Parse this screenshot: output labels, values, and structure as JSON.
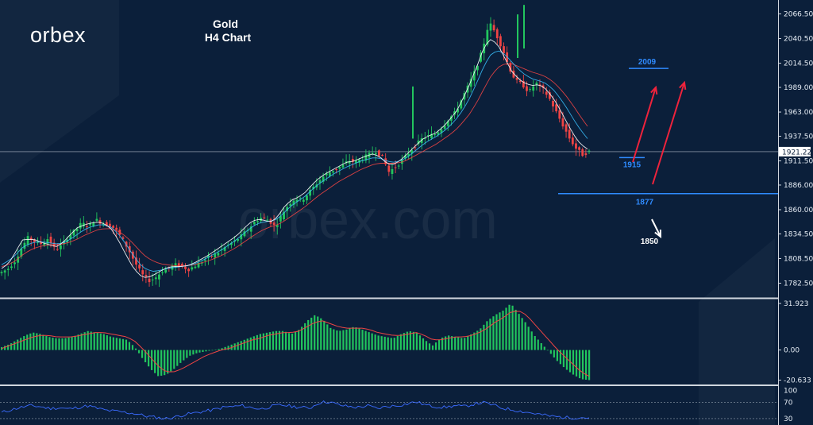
{
  "brand": {
    "logo": "orbex",
    "watermark": "orbex.com"
  },
  "title": {
    "line1": "Gold",
    "line2": "H4 Chart"
  },
  "colors": {
    "background": "#0b1f3a",
    "bull": "#22c55e",
    "bear": "#ef4444",
    "ma_fast": "#ffffff",
    "ma_mid": "#38bdf8",
    "ma_slow": "#ef4444",
    "level_line": "#2f8bff",
    "up_arrow": "#ef233c",
    "down_arrow": "#ffffff",
    "macd_hist": "#22c55e",
    "macd_signal": "#ef4444",
    "rsi_line": "#3b6bff"
  },
  "chart_data": [
    {
      "type": "candlestick",
      "panel": "price",
      "title": "Gold H4 Chart",
      "y_ticks": [
        "2066.50",
        "2040.50",
        "2014.50",
        "1989.00",
        "1963.00",
        "1937.50",
        "1911.50",
        "1886.00",
        "1860.00",
        "1834.50",
        "1808.50",
        "1782.50"
      ],
      "ylim": [
        1769.5,
        2079.5
      ],
      "current_price": "1921.22",
      "close_path": [
        1794,
        1798,
        1806,
        1820,
        1831,
        1826,
        1824,
        1830,
        1818,
        1822,
        1832,
        1838,
        1846,
        1842,
        1850,
        1846,
        1844,
        1840,
        1830,
        1818,
        1804,
        1792,
        1785,
        1788,
        1795,
        1798,
        1802,
        1800,
        1797,
        1801,
        1805,
        1810,
        1813,
        1818,
        1823,
        1827,
        1833,
        1840,
        1848,
        1852,
        1849,
        1842,
        1855,
        1866,
        1872,
        1870,
        1878,
        1886,
        1894,
        1899,
        1903,
        1906,
        1912,
        1910,
        1914,
        1918,
        1922,
        1916,
        1900,
        1905,
        1912,
        1920,
        1928,
        1935,
        1938,
        1940,
        1947,
        1956,
        1963,
        1978,
        1992,
        2008,
        2028,
        2058,
        2046,
        2030,
        2010,
        1996,
        1992,
        1984,
        1994,
        1988,
        1978,
        1964,
        1950,
        1936,
        1925,
        1918,
        1921.22
      ],
      "ma_fast_path": [
        1798,
        1803,
        1815,
        1828,
        1829,
        1828,
        1825,
        1823,
        1821,
        1826,
        1834,
        1841,
        1844,
        1846,
        1847,
        1845,
        1839,
        1827,
        1813,
        1800,
        1791,
        1788,
        1791,
        1795,
        1799,
        1800,
        1800,
        1801,
        1804,
        1808,
        1812,
        1817,
        1822,
        1827,
        1832,
        1839,
        1846,
        1850,
        1849,
        1847,
        1852,
        1863,
        1870,
        1873,
        1878,
        1886,
        1893,
        1898,
        1902,
        1906,
        1910,
        1911,
        1914,
        1917,
        1919,
        1915,
        1908,
        1908,
        1913,
        1920,
        1927,
        1934,
        1938,
        1941,
        1947,
        1955,
        1964,
        1978,
        1994,
        2012,
        2032,
        2040,
        2034,
        2020,
        2006,
        1998,
        1993,
        1991,
        1992,
        1987,
        1978,
        1966,
        1952,
        1939,
        1929,
        1924
      ],
      "ma_mid_path": [
        1802,
        1806,
        1812,
        1820,
        1824,
        1826,
        1826,
        1825,
        1824,
        1825,
        1829,
        1834,
        1839,
        1842,
        1844,
        1844,
        1841,
        1834,
        1824,
        1813,
        1803,
        1797,
        1795,
        1796,
        1798,
        1799,
        1800,
        1801,
        1803,
        1806,
        1810,
        1814,
        1818,
        1823,
        1828,
        1834,
        1840,
        1845,
        1847,
        1848,
        1850,
        1857,
        1864,
        1869,
        1874,
        1881,
        1887,
        1892,
        1897,
        1901,
        1905,
        1908,
        1911,
        1913,
        1915,
        1914,
        1911,
        1910,
        1912,
        1916,
        1922,
        1928,
        1933,
        1937,
        1942,
        1948,
        1956,
        1966,
        1979,
        1995,
        2012,
        2024,
        2028,
        2024,
        2016,
        2008,
        2002,
        1998,
        1996,
        1993,
        1987,
        1978,
        1967,
        1955,
        1944,
        1935
      ],
      "ma_slow_path": [
        1800,
        1802,
        1806,
        1812,
        1817,
        1820,
        1822,
        1823,
        1823,
        1824,
        1826,
        1829,
        1833,
        1836,
        1839,
        1840,
        1840,
        1837,
        1832,
        1825,
        1817,
        1810,
        1806,
        1803,
        1802,
        1801,
        1801,
        1801,
        1802,
        1804,
        1806,
        1809,
        1812,
        1816,
        1820,
        1825,
        1830,
        1835,
        1839,
        1842,
        1844,
        1848,
        1853,
        1858,
        1863,
        1869,
        1875,
        1880,
        1885,
        1890,
        1894,
        1898,
        1902,
        1905,
        1908,
        1909,
        1909,
        1909,
        1910,
        1913,
        1917,
        1921,
        1925,
        1929,
        1934,
        1939,
        1945,
        1953,
        1962,
        1974,
        1988,
        2001,
        2010,
        2014,
        2014,
        2011,
        2008,
        2005,
        2003,
        2000,
        1995,
        1988,
        1979,
        1969,
        1958,
        1948
      ]
    },
    {
      "type": "histogram",
      "panel": "macd",
      "y_ticks": [
        "31.923",
        "0.00",
        "-20.633"
      ],
      "ylim": [
        -22,
        33
      ],
      "values_path": [
        2,
        4,
        7,
        10,
        12,
        11,
        9,
        8,
        8,
        9,
        11,
        13,
        12,
        11,
        9,
        8,
        7,
        2,
        -6,
        -13,
        -18,
        -17,
        -13,
        -8,
        -4,
        -2,
        -1,
        0,
        1,
        3,
        5,
        7,
        9,
        11,
        12,
        13,
        13,
        11,
        14,
        20,
        24,
        21,
        15,
        13,
        14,
        16,
        14,
        12,
        10,
        9,
        8,
        11,
        13,
        12,
        7,
        3,
        8,
        10,
        9,
        8,
        11,
        14,
        20,
        24,
        27,
        31.9,
        25,
        18,
        10,
        4,
        -2,
        -8,
        -13,
        -17,
        -20,
        -20.6
      ],
      "signal_path": [
        1,
        3,
        5,
        7,
        9,
        10,
        10,
        9,
        9,
        9,
        10,
        11,
        12,
        12,
        11,
        10,
        9,
        6,
        1,
        -5,
        -11,
        -15,
        -15,
        -13,
        -10,
        -7,
        -4,
        -2,
        0,
        1,
        3,
        5,
        7,
        8,
        10,
        11,
        12,
        12,
        13,
        16,
        19,
        20,
        18,
        16,
        15,
        15,
        15,
        14,
        12,
        11,
        10,
        10,
        11,
        12,
        10,
        7,
        7,
        8,
        9,
        9,
        10,
        12,
        15,
        19,
        22,
        26,
        27,
        24,
        18,
        12,
        6,
        0,
        -5,
        -10,
        -15,
        -18
      ]
    },
    {
      "type": "line",
      "panel": "rsi",
      "y_ticks": [
        "100",
        "70",
        "30"
      ],
      "ylim": [
        20,
        105
      ],
      "levels": [
        70,
        30
      ],
      "values_path": [
        45,
        52,
        58,
        62,
        60,
        55,
        57,
        54,
        58,
        62,
        55,
        50,
        48,
        45,
        42,
        36,
        33,
        30,
        34,
        40,
        44,
        48,
        52,
        58,
        60,
        62,
        57,
        54,
        60,
        64,
        61,
        58,
        56,
        70,
        72,
        64,
        60,
        58,
        62,
        55,
        60,
        62,
        66,
        72,
        64,
        60,
        58,
        62,
        60,
        66,
        70,
        64,
        56,
        52,
        48,
        44,
        40,
        36,
        34,
        32,
        33,
        32
      ]
    }
  ],
  "levels": [
    {
      "label": "2009",
      "price": 2009,
      "color": "#2f8bff"
    },
    {
      "label": "1915",
      "price": 1915,
      "color": "#2f8bff"
    },
    {
      "label": "1877",
      "price": 1877,
      "color": "#2f8bff"
    },
    {
      "label": "1850",
      "price": 1850,
      "color": "#ffffff"
    }
  ]
}
